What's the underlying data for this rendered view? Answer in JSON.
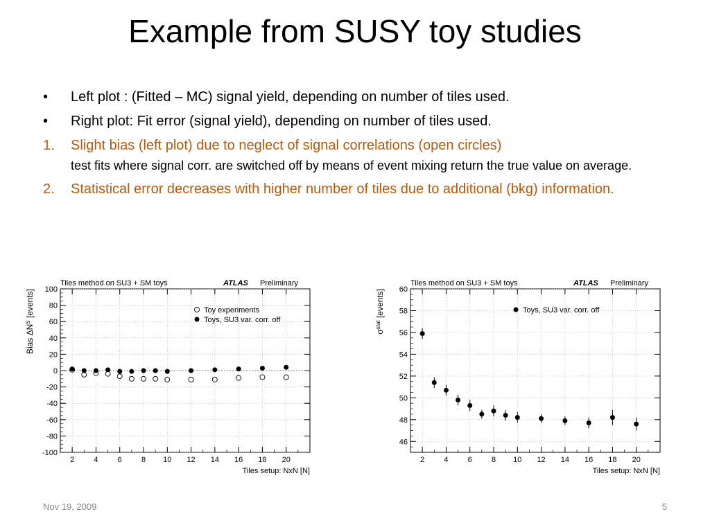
{
  "slide": {
    "title": "Example from SUSY toy studies",
    "bullets": [
      {
        "marker": "•",
        "text": "Left plot : (Fitted – MC) signal yield, depending on number of tiles used."
      },
      {
        "marker": "•",
        "text": "Right plot: Fit error (signal yield), depending on number of tiles used."
      }
    ],
    "numbered": [
      {
        "marker": "1.",
        "text": "Slight bias (left plot) due to neglect of signal correlations (open circles)",
        "sub": "test fits where signal corr. are switched off  by means of event mixing return the true value on average."
      },
      {
        "marker": "2.",
        "text": "Statistical error decreases with higher number of tiles due to additional (bkg) information.",
        "sub": ""
      }
    ],
    "footer": {
      "date": "Nov 19, 2009",
      "page": "5"
    },
    "colors": {
      "numbered_text": "#b35b0c"
    }
  },
  "chart_data": [
    {
      "type": "scatter",
      "title": "Tiles method on SU3 + SM toys",
      "label_brand": "ATLAS",
      "label_status": "Preliminary",
      "xlabel": "Tiles setup: NxN [N]",
      "ylabel": "Bias ΔN^S [events]",
      "xlim": [
        1,
        22
      ],
      "ylim": [
        -100,
        100
      ],
      "xticks": [
        2,
        4,
        6,
        8,
        10,
        12,
        14,
        16,
        18,
        20
      ],
      "yticks": [
        100,
        80,
        60,
        40,
        20,
        0,
        -20,
        -40,
        -60,
        -80,
        -100
      ],
      "reference_line": 0,
      "series": [
        {
          "name": "Toy experiments",
          "marker": "open-circle",
          "x": [
            2,
            3,
            4,
            5,
            6,
            7,
            8,
            9,
            10,
            12,
            14,
            16,
            18,
            20
          ],
          "y": [
            1,
            -5,
            -3,
            -4,
            -7,
            -10,
            -10,
            -10,
            -11,
            -11,
            -11,
            -9,
            -8,
            -8
          ]
        },
        {
          "name": "Toys, SU3 var. corr. off",
          "marker": "filled-circle",
          "x": [
            2,
            3,
            4,
            5,
            6,
            7,
            8,
            9,
            10,
            12,
            14,
            16,
            18,
            20
          ],
          "y": [
            2,
            0,
            0,
            1,
            -1,
            -1,
            0,
            0,
            -1,
            0,
            1,
            2,
            3,
            4
          ]
        }
      ]
    },
    {
      "type": "scatter",
      "title": "Tiles method on SU3 + SM toys",
      "label_brand": "ATLAS",
      "label_status": "Preliminary",
      "xlabel": "Tiles setup: NxN [N]",
      "ylabel": "σ^stat [events]",
      "xlim": [
        1,
        22
      ],
      "ylim": [
        45,
        60
      ],
      "xticks": [
        2,
        4,
        6,
        8,
        10,
        12,
        14,
        16,
        18,
        20
      ],
      "yticks": [
        60,
        58,
        56,
        54,
        52,
        50,
        48,
        46
      ],
      "series": [
        {
          "name": "Toys, SU3 var. corr. off",
          "marker": "filled-circle",
          "x": [
            2,
            3,
            4,
            5,
            6,
            7,
            8,
            9,
            10,
            12,
            14,
            16,
            18,
            20
          ],
          "y": [
            55.9,
            51.4,
            50.7,
            49.8,
            49.3,
            48.5,
            48.8,
            48.4,
            48.2,
            48.1,
            47.9,
            47.7,
            48.2,
            47.6
          ],
          "err": [
            0.5,
            0.5,
            0.5,
            0.5,
            0.5,
            0.4,
            0.5,
            0.5,
            0.5,
            0.4,
            0.4,
            0.5,
            0.7,
            0.6
          ]
        }
      ]
    }
  ]
}
